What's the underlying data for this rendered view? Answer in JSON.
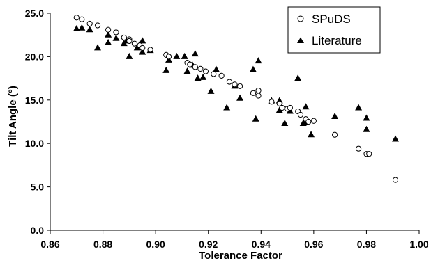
{
  "chart_data": {
    "type": "scatter",
    "xlabel": "Tolerance Factor",
    "ylabel": "Tilt Angle (°)",
    "xlim": [
      0.86,
      1.0
    ],
    "ylim": [
      0,
      25
    ],
    "xticks": [
      "0.86",
      "0.88",
      "0.90",
      "0.92",
      "0.94",
      "0.96",
      "0.98",
      "1.00"
    ],
    "yticks": [
      "0.0",
      "5.0",
      "10.0",
      "15.0",
      "20.0",
      "25.0"
    ],
    "grid": false,
    "legend_position": "top-right",
    "series": [
      {
        "name": "SPuDS",
        "marker": "open-circle",
        "color": "#000000",
        "x": [
          0.87,
          0.872,
          0.875,
          0.878,
          0.882,
          0.885,
          0.888,
          0.89,
          0.89,
          0.892,
          0.894,
          0.895,
          0.898,
          0.904,
          0.905,
          0.912,
          0.913,
          0.915,
          0.917,
          0.919,
          0.922,
          0.925,
          0.928,
          0.93,
          0.932,
          0.937,
          0.939,
          0.939,
          0.944,
          0.947,
          0.948,
          0.95,
          0.951,
          0.954,
          0.955,
          0.957,
          0.958,
          0.96,
          0.968,
          0.977,
          0.98,
          0.981,
          0.991
        ],
        "y": [
          24.5,
          24.3,
          23.8,
          23.6,
          23.1,
          22.8,
          22.2,
          22.0,
          21.8,
          21.5,
          21.3,
          21.0,
          20.8,
          20.2,
          20.0,
          19.3,
          19.1,
          18.8,
          18.6,
          18.3,
          18.0,
          17.8,
          17.1,
          16.8,
          16.6,
          15.8,
          15.5,
          16.1,
          14.8,
          14.6,
          14.1,
          14.0,
          14.1,
          13.7,
          13.3,
          12.8,
          12.5,
          12.6,
          11.0,
          9.4,
          8.8,
          8.8,
          5.8
        ]
      },
      {
        "name": "Literature",
        "marker": "filled-triangle",
        "color": "#000000",
        "x": [
          0.87,
          0.872,
          0.875,
          0.878,
          0.882,
          0.882,
          0.885,
          0.888,
          0.889,
          0.89,
          0.893,
          0.895,
          0.895,
          0.898,
          0.904,
          0.905,
          0.908,
          0.911,
          0.912,
          0.914,
          0.915,
          0.916,
          0.918,
          0.921,
          0.923,
          0.927,
          0.93,
          0.932,
          0.937,
          0.938,
          0.939,
          0.944,
          0.947,
          0.947,
          0.949,
          0.951,
          0.954,
          0.956,
          0.957,
          0.957,
          0.959,
          0.968,
          0.977,
          0.98,
          0.98,
          0.991
        ],
        "y": [
          23.2,
          23.3,
          23.1,
          21.0,
          22.5,
          21.6,
          22.1,
          21.5,
          21.8,
          20.0,
          21.0,
          21.8,
          20.5,
          20.7,
          18.4,
          19.6,
          20.0,
          20.0,
          18.3,
          19.0,
          20.3,
          17.5,
          17.6,
          16.0,
          18.5,
          14.1,
          16.6,
          15.2,
          18.5,
          12.8,
          19.5,
          14.9,
          14.9,
          13.8,
          12.3,
          13.7,
          17.5,
          12.3,
          14.2,
          12.4,
          11.0,
          13.1,
          14.1,
          12.9,
          11.6,
          10.5
        ]
      }
    ]
  }
}
